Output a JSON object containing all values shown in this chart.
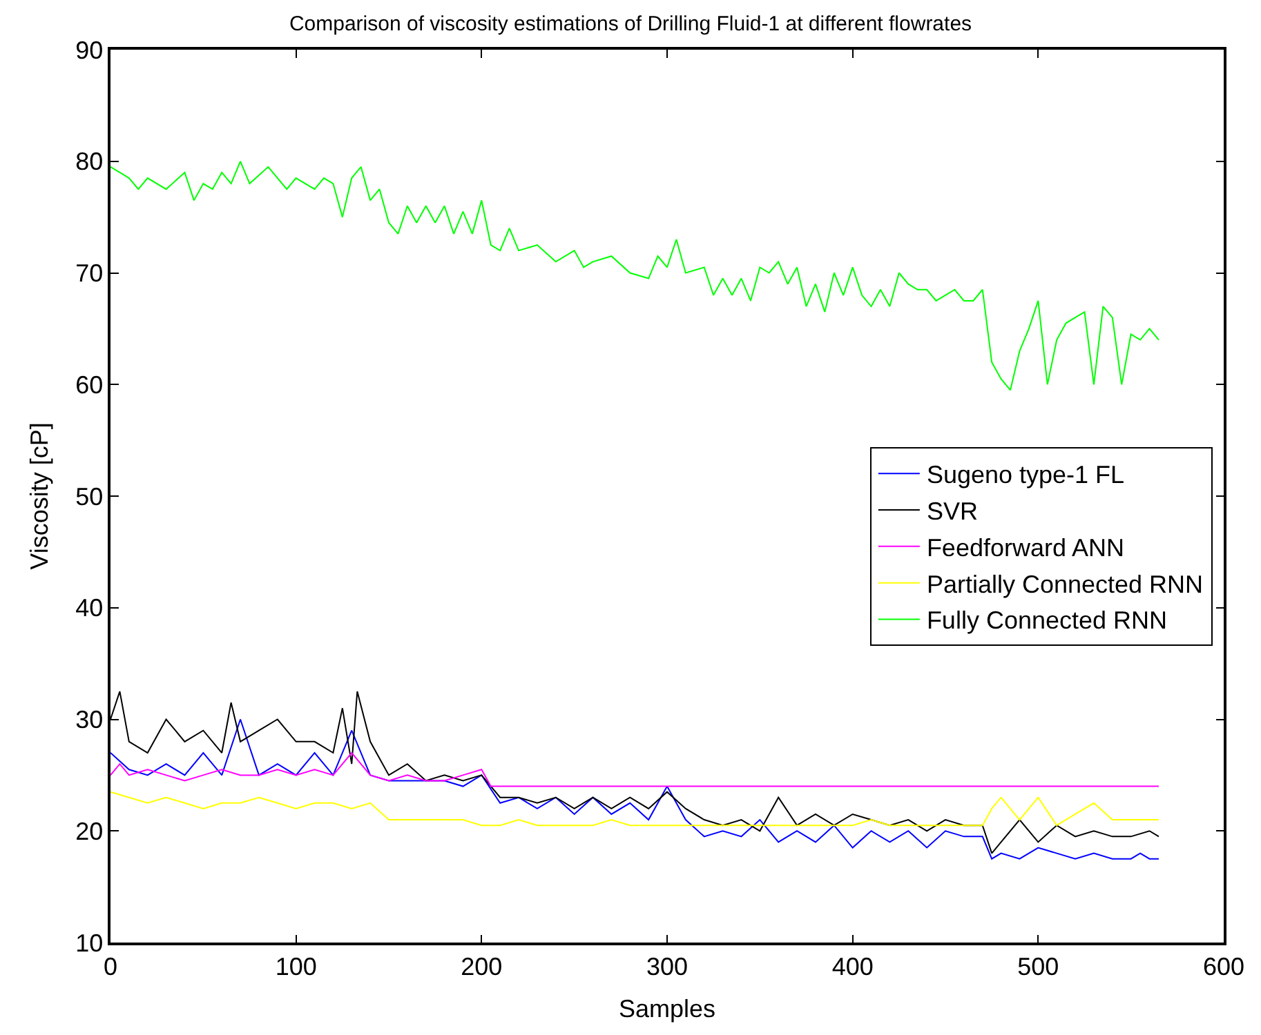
{
  "chart_data": {
    "type": "line",
    "title": "Comparison of viscosity estimations of Drilling Fluid-1 at different flowrates",
    "xlabel": "Samples",
    "ylabel": "Viscosity [cP]",
    "xlim": [
      0,
      600
    ],
    "xticks": [
      0,
      100,
      200,
      300,
      400,
      500,
      600
    ],
    "ylim": [
      10,
      90
    ],
    "yticks": [
      10,
      20,
      30,
      40,
      50,
      60,
      70,
      80,
      90
    ],
    "grid": false,
    "legend": "right",
    "marker": "none",
    "line_style": "solid",
    "series": [
      {
        "name": "Sugeno type-1 FL",
        "color": "#0000ff",
        "x": [
          0,
          10,
          20,
          30,
          40,
          50,
          60,
          70,
          80,
          90,
          100,
          110,
          120,
          130,
          140,
          150,
          160,
          170,
          180,
          190,
          200,
          210,
          220,
          230,
          240,
          250,
          260,
          270,
          280,
          290,
          300,
          310,
          320,
          330,
          340,
          350,
          360,
          370,
          380,
          390,
          400,
          410,
          420,
          430,
          440,
          450,
          460,
          470,
          475,
          480,
          490,
          500,
          510,
          520,
          530,
          540,
          550,
          555,
          560,
          565
        ],
        "values": [
          27,
          25.5,
          25,
          26,
          25,
          27,
          25,
          30,
          25,
          26,
          25,
          27,
          25,
          29,
          25,
          24.5,
          24.5,
          24.5,
          24.5,
          24,
          25,
          22.5,
          23,
          22,
          23,
          21.5,
          23,
          21.5,
          22.5,
          21,
          24,
          21,
          19.5,
          20,
          19.5,
          21,
          19,
          20,
          19,
          20.5,
          18.5,
          20,
          19,
          20,
          18.5,
          20,
          19.5,
          19.5,
          17.5,
          18,
          17.5,
          18.5,
          18,
          17.5,
          18,
          17.5,
          17.5,
          18,
          17.5,
          17.5
        ]
      },
      {
        "name": "SVR",
        "color": "#000000",
        "x": [
          0,
          5,
          10,
          20,
          30,
          40,
          50,
          60,
          65,
          70,
          80,
          90,
          100,
          110,
          120,
          125,
          130,
          133,
          140,
          150,
          160,
          170,
          180,
          190,
          200,
          210,
          220,
          230,
          240,
          250,
          260,
          270,
          280,
          290,
          300,
          310,
          320,
          330,
          340,
          350,
          360,
          370,
          380,
          390,
          400,
          410,
          420,
          430,
          440,
          450,
          460,
          470,
          475,
          480,
          490,
          500,
          510,
          520,
          530,
          540,
          550,
          560,
          565
        ],
        "values": [
          30,
          32.5,
          28,
          27,
          30,
          28,
          29,
          27,
          31.5,
          28,
          29,
          30,
          28,
          28,
          27,
          31,
          26,
          32.5,
          28,
          25,
          26,
          24.5,
          25,
          24.5,
          25,
          23,
          23,
          22.5,
          23,
          22,
          23,
          22,
          23,
          22,
          23.5,
          22,
          21,
          20.5,
          21,
          20,
          23,
          20.5,
          21.5,
          20.5,
          21.5,
          21,
          20.5,
          21,
          20,
          21,
          20.5,
          20.5,
          18,
          19,
          21,
          19,
          20.5,
          19.5,
          20,
          19.5,
          19.5,
          20,
          19.5
        ]
      },
      {
        "name": "Feedforward ANN",
        "color": "#ff00ff",
        "x": [
          0,
          5,
          10,
          20,
          30,
          40,
          50,
          60,
          70,
          80,
          90,
          100,
          110,
          120,
          130,
          140,
          150,
          160,
          170,
          180,
          190,
          200,
          205,
          565
        ],
        "values": [
          25,
          26,
          25,
          25.5,
          25,
          24.5,
          25,
          25.5,
          25,
          25,
          25.5,
          25,
          25.5,
          25,
          27,
          25,
          24.5,
          25,
          24.5,
          24.5,
          25,
          25.5,
          24,
          24
        ]
      },
      {
        "name": "Partially Connected RNN",
        "color": "#ffff00",
        "x": [
          0,
          10,
          20,
          30,
          40,
          50,
          60,
          70,
          80,
          90,
          100,
          110,
          120,
          130,
          140,
          150,
          160,
          170,
          180,
          190,
          200,
          210,
          220,
          230,
          240,
          250,
          260,
          270,
          280,
          290,
          300,
          310,
          320,
          330,
          340,
          350,
          360,
          370,
          380,
          390,
          400,
          410,
          420,
          430,
          440,
          450,
          460,
          470,
          475,
          480,
          490,
          500,
          510,
          520,
          530,
          540,
          550,
          560,
          565
        ],
        "values": [
          23.5,
          23,
          22.5,
          23,
          22.5,
          22,
          22.5,
          22.5,
          23,
          22.5,
          22,
          22.5,
          22.5,
          22,
          22.5,
          21,
          21,
          21,
          21,
          21,
          20.5,
          20.5,
          21,
          20.5,
          20.5,
          20.5,
          20.5,
          21,
          20.5,
          20.5,
          20.5,
          20.5,
          20.5,
          20.5,
          20.5,
          20.5,
          20.5,
          20.5,
          20.5,
          20.5,
          20.5,
          21,
          20.5,
          20.5,
          20.5,
          20.5,
          20.5,
          20.5,
          22,
          23,
          21,
          23,
          20.5,
          21.5,
          22.5,
          21,
          21,
          21,
          21
        ]
      },
      {
        "name": "Fully Connected RNN",
        "color": "#00ff00",
        "x": [
          0,
          5,
          10,
          15,
          20,
          30,
          40,
          45,
          50,
          55,
          60,
          65,
          70,
          75,
          85,
          95,
          100,
          110,
          115,
          120,
          125,
          130,
          135,
          140,
          145,
          150,
          155,
          160,
          165,
          170,
          175,
          180,
          185,
          190,
          195,
          200,
          205,
          210,
          215,
          220,
          230,
          240,
          250,
          255,
          260,
          270,
          280,
          290,
          295,
          300,
          305,
          310,
          320,
          325,
          330,
          335,
          340,
          345,
          350,
          355,
          360,
          365,
          370,
          375,
          380,
          385,
          390,
          395,
          400,
          405,
          410,
          415,
          420,
          425,
          430,
          435,
          440,
          445,
          450,
          455,
          460,
          465,
          470,
          475,
          480,
          485,
          490,
          495,
          500,
          505,
          510,
          515,
          520,
          525,
          530,
          535,
          540,
          545,
          550,
          555,
          560,
          565
        ],
        "values": [
          79.5,
          79,
          78.5,
          77.5,
          78.5,
          77.5,
          79,
          76.5,
          78,
          77.5,
          79,
          78,
          80,
          78,
          79.5,
          77.5,
          78.5,
          77.5,
          78.5,
          78,
          75,
          78.5,
          79.5,
          76.5,
          77.5,
          74.5,
          73.5,
          76,
          74.5,
          76,
          74.5,
          76,
          73.5,
          75.5,
          73.5,
          76.5,
          72.5,
          72,
          74,
          72,
          72.5,
          71,
          72,
          70.5,
          71,
          71.5,
          70,
          69.5,
          71.5,
          70.5,
          73,
          70,
          70.5,
          68,
          69.5,
          68,
          69.5,
          67.5,
          70.5,
          70,
          71,
          69,
          70.5,
          67,
          69,
          66.5,
          70,
          68,
          70.5,
          68,
          67,
          68.5,
          67,
          70,
          69,
          68.5,
          68.5,
          67.5,
          68,
          68.5,
          67.5,
          67.5,
          68.5,
          62,
          60.5,
          59.5,
          63,
          65,
          67.5,
          60,
          64,
          65.5,
          66,
          66.5,
          60,
          67,
          66,
          60,
          64.5,
          64,
          65,
          64
        ]
      }
    ]
  }
}
